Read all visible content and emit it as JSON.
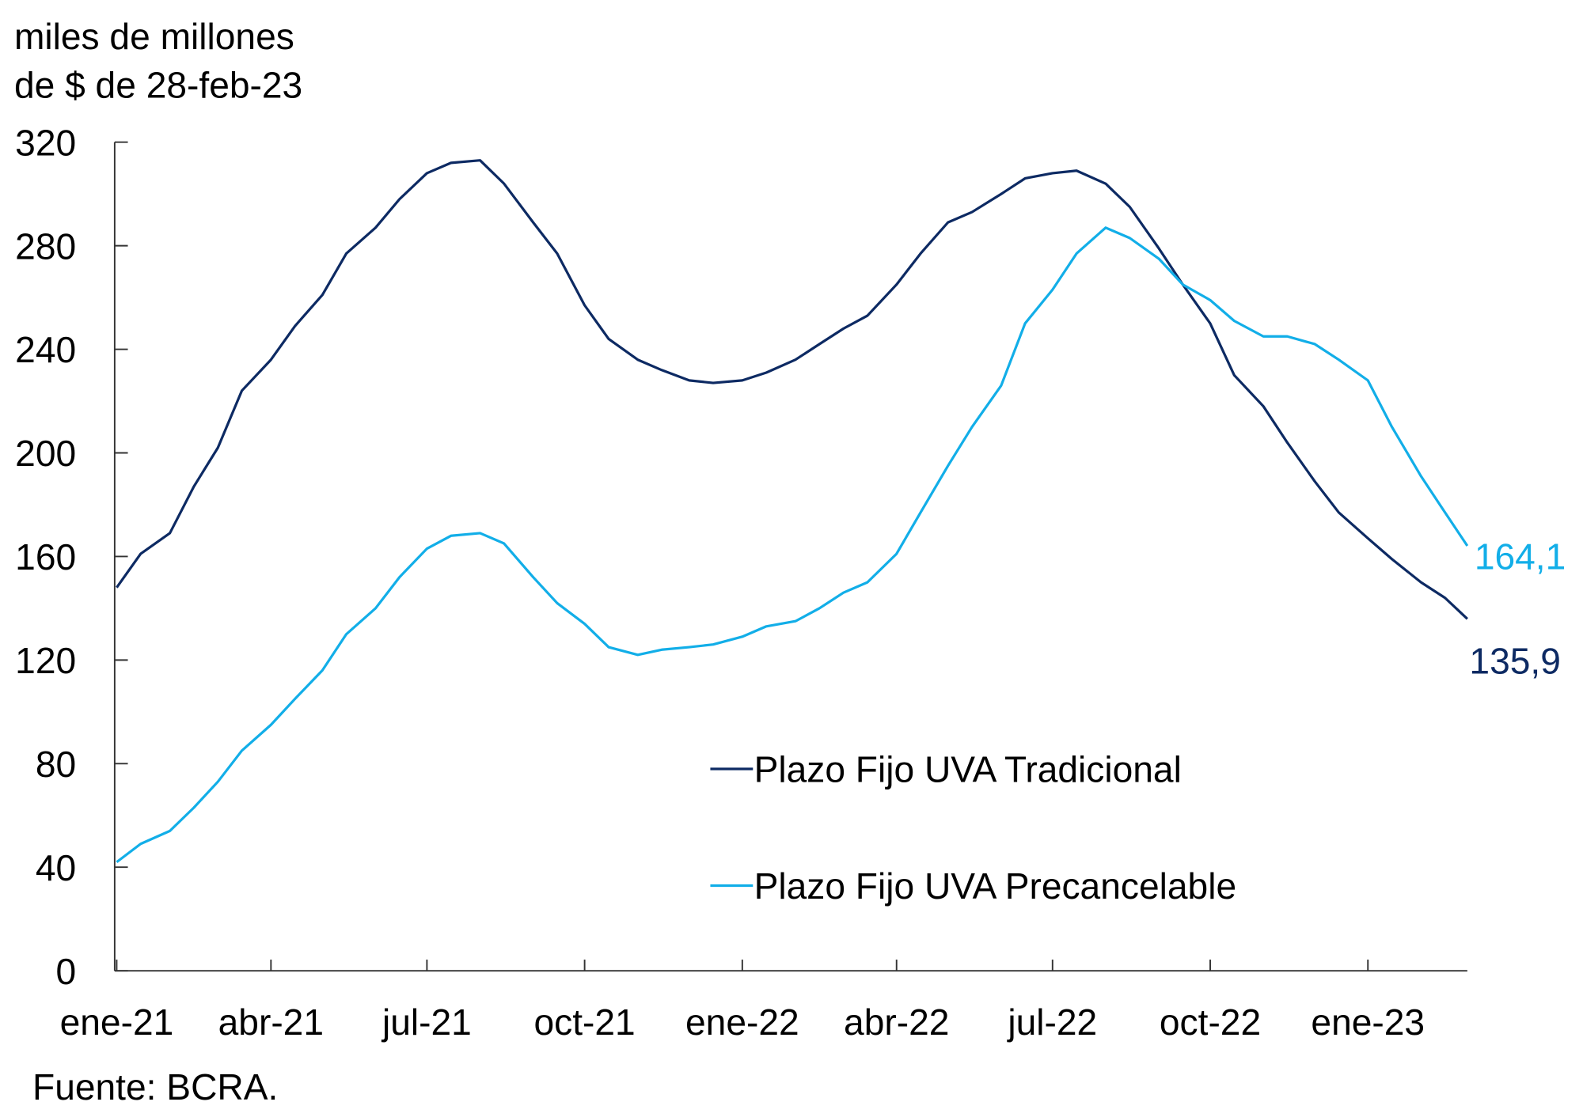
{
  "chart_data": {
    "type": "line",
    "ylabel_lines": [
      "miles de millones",
      "de $ de 28-feb-23"
    ],
    "ylim": [
      0,
      320
    ],
    "yticks": [
      0,
      40,
      80,
      120,
      160,
      200,
      240,
      280,
      320
    ],
    "xlim": [
      "2021-01-01",
      "2023-02-28"
    ],
    "xticks": [
      {
        "date": "2021-01-01",
        "label": "ene-21"
      },
      {
        "date": "2021-04-01",
        "label": "abr-21"
      },
      {
        "date": "2021-07-01",
        "label": "jul-21"
      },
      {
        "date": "2021-10-01",
        "label": "oct-21"
      },
      {
        "date": "2022-01-01",
        "label": "ene-22"
      },
      {
        "date": "2022-04-01",
        "label": "abr-22"
      },
      {
        "date": "2022-07-01",
        "label": "jul-22"
      },
      {
        "date": "2022-10-01",
        "label": "oct-22"
      },
      {
        "date": "2023-01-01",
        "label": "ene-23"
      }
    ],
    "grid": false,
    "legend_position": "bottom-center",
    "x": [
      "2021-01-01",
      "2021-01-15",
      "2021-02-01",
      "2021-02-15",
      "2021-03-01",
      "2021-03-15",
      "2021-04-01",
      "2021-04-15",
      "2021-05-01",
      "2021-05-15",
      "2021-06-01",
      "2021-06-15",
      "2021-07-01",
      "2021-07-15",
      "2021-08-01",
      "2021-08-15",
      "2021-09-01",
      "2021-09-15",
      "2021-10-01",
      "2021-10-15",
      "2021-11-01",
      "2021-11-15",
      "2021-12-01",
      "2021-12-15",
      "2022-01-01",
      "2022-01-15",
      "2022-02-01",
      "2022-02-15",
      "2022-03-01",
      "2022-03-15",
      "2022-04-01",
      "2022-04-15",
      "2022-05-01",
      "2022-05-15",
      "2022-06-01",
      "2022-06-15",
      "2022-07-01",
      "2022-07-15",
      "2022-08-01",
      "2022-08-15",
      "2022-09-01",
      "2022-09-15",
      "2022-10-01",
      "2022-10-15",
      "2022-11-01",
      "2022-11-15",
      "2022-12-01",
      "2022-12-15",
      "2023-01-01",
      "2023-01-15",
      "2023-02-01",
      "2023-02-15",
      "2023-02-28"
    ],
    "series": [
      {
        "name": "Plazo Fijo UVA Tradicional",
        "color": "#0d2a63",
        "values": [
          148,
          161,
          169,
          187,
          202,
          224,
          236,
          249,
          261,
          277,
          287,
          298,
          308,
          312,
          313,
          304,
          289,
          277,
          257,
          244,
          236,
          232,
          228,
          227,
          228,
          231,
          236,
          242,
          248,
          253,
          265,
          277,
          289,
          293,
          300,
          306,
          308,
          309,
          304,
          295,
          279,
          265,
          250,
          230,
          218,
          204,
          189,
          177,
          167,
          159,
          150,
          144,
          135.9
        ],
        "end_label": "135,9"
      },
      {
        "name": "Plazo Fijo UVA Precancelable",
        "color": "#12aee8",
        "values": [
          42,
          49,
          54,
          63,
          73,
          85,
          95,
          105,
          116,
          130,
          140,
          152,
          163,
          168,
          169,
          165,
          152,
          142,
          134,
          125,
          122,
          124,
          125,
          126,
          129,
          133,
          135,
          140,
          146,
          150,
          161,
          177,
          195,
          210,
          226,
          250,
          263,
          277,
          287,
          283,
          275,
          265,
          259,
          251,
          245,
          245,
          242,
          236,
          228,
          210,
          191,
          177,
          164.1
        ],
        "end_label": "164,1"
      }
    ],
    "source": "Fuente: BCRA."
  }
}
